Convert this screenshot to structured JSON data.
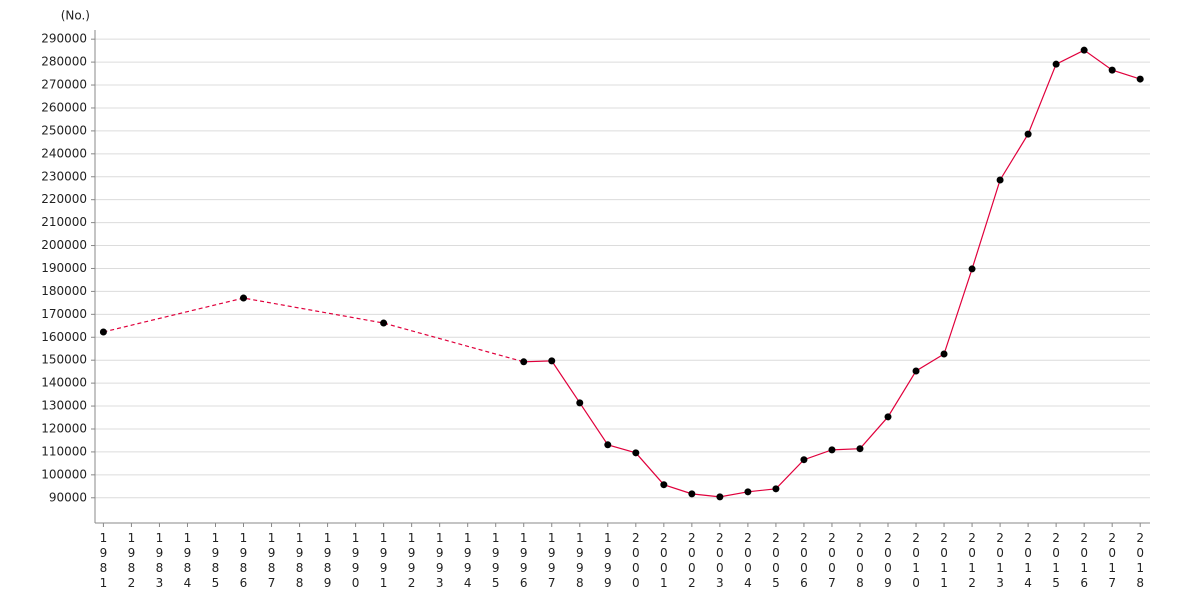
{
  "chart_data": {
    "type": "line",
    "y_label": "(No.)",
    "x": [
      1981,
      1986,
      1991,
      1996,
      1997,
      1998,
      1999,
      2000,
      2001,
      2002,
      2003,
      2004,
      2005,
      2006,
      2007,
      2008,
      2009,
      2010,
      2011,
      2012,
      2013,
      2014,
      2015,
      2016,
      2017,
      2018
    ],
    "series": [
      {
        "color": "#e0003c",
        "marker_color": "#000000",
        "values": [
          162300,
          177100,
          166200,
          149300,
          149700,
          131400,
          113100,
          109600,
          95700,
          91700,
          90400,
          92600,
          93900,
          106600,
          110900,
          111400,
          125300,
          145300,
          152700,
          189800,
          228600,
          248600,
          279100,
          285200,
          276500,
          272600
        ]
      }
    ],
    "xlim": [
      1980.7,
      2018.35
    ],
    "xticks": [
      1981,
      1982,
      1983,
      1984,
      1985,
      1986,
      1987,
      1988,
      1989,
      1990,
      1991,
      1992,
      1993,
      1994,
      1995,
      1996,
      1997,
      1998,
      1999,
      2000,
      2001,
      2002,
      2003,
      2004,
      2005,
      2006,
      2007,
      2008,
      2009,
      2010,
      2011,
      2012,
      2013,
      2014,
      2015,
      2016,
      2017,
      2018
    ],
    "ylim": [
      79000,
      294000
    ],
    "yticks": [
      90000,
      100000,
      110000,
      120000,
      130000,
      140000,
      150000,
      160000,
      170000,
      180000,
      190000,
      200000,
      210000,
      220000,
      230000,
      240000,
      250000,
      260000,
      270000,
      280000,
      290000
    ],
    "grid": true
  }
}
